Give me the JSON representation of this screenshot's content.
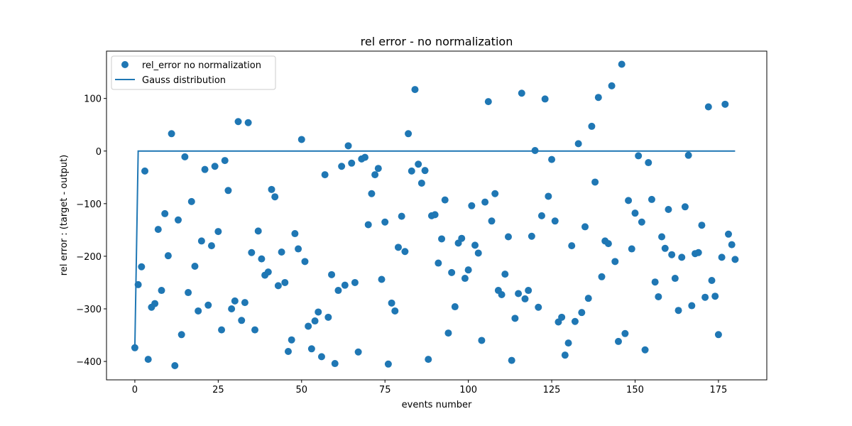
{
  "chart_data": {
    "type": "scatter",
    "title": "rel error - no normalization",
    "xlabel": "events number",
    "ylabel": "rel error : (target - output)",
    "xlim": [
      -8.5,
      189.5
    ],
    "ylim": [
      -435,
      190
    ],
    "xticks": [
      0,
      25,
      50,
      75,
      100,
      125,
      150,
      175
    ],
    "yticks": [
      -400,
      -300,
      -200,
      -100,
      0,
      100
    ],
    "grid": false,
    "legend_position": "upper-left",
    "colors": {
      "series": "#1f77b4"
    },
    "series": [
      {
        "name": "rel_error no normalization",
        "kind": "scatter",
        "x": [
          0,
          1,
          2,
          3,
          4,
          5,
          6,
          7,
          8,
          9,
          10,
          11,
          12,
          13,
          14,
          15,
          16,
          17,
          18,
          19,
          20,
          21,
          22,
          23,
          24,
          25,
          26,
          27,
          28,
          29,
          30,
          31,
          32,
          33,
          34,
          35,
          36,
          37,
          38,
          39,
          40,
          41,
          42,
          43,
          44,
          45,
          46,
          47,
          48,
          49,
          50,
          51,
          52,
          53,
          54,
          55,
          56,
          57,
          58,
          59,
          60,
          61,
          62,
          63,
          64,
          65,
          66,
          67,
          68,
          69,
          70,
          71,
          72,
          73,
          74,
          75,
          76,
          77,
          78,
          79,
          80,
          81,
          82,
          83,
          84,
          85,
          86,
          87,
          88,
          89,
          90,
          91,
          92,
          93,
          94,
          95,
          96,
          97,
          98,
          99,
          100,
          101,
          102,
          103,
          104,
          105,
          106,
          107,
          108,
          109,
          110,
          111,
          112,
          113,
          114,
          115,
          116,
          117,
          118,
          119,
          120,
          121,
          122,
          123,
          124,
          125,
          126,
          127,
          128,
          129,
          130,
          131,
          132,
          133,
          134,
          135,
          136,
          137,
          138,
          139,
          140,
          141,
          142,
          143,
          144,
          145,
          146,
          147,
          148,
          149,
          150,
          151,
          152,
          153,
          154,
          155,
          156,
          157,
          158,
          159,
          160,
          161,
          162,
          163,
          164,
          165,
          166,
          167,
          168,
          169,
          170,
          171,
          172,
          173,
          174,
          175,
          176,
          177,
          178,
          179,
          180
        ],
        "y": [
          -374,
          -254,
          -220,
          -38,
          -396,
          -297,
          -290,
          -149,
          -265,
          -119,
          -199,
          33,
          -408,
          -131,
          -349,
          -11,
          -269,
          -96,
          -219,
          -304,
          -171,
          -35,
          -293,
          -180,
          -29,
          -153,
          -340,
          -18,
          -75,
          -300,
          -285,
          56,
          -322,
          -288,
          54,
          -193,
          -340,
          -152,
          -205,
          -236,
          -230,
          -73,
          -87,
          -256,
          -192,
          -250,
          -381,
          -359,
          -157,
          -186,
          22,
          -210,
          -333,
          -376,
          -323,
          -306,
          -391,
          -45,
          -316,
          -235,
          -404,
          -265,
          -29,
          -255,
          10,
          -23,
          -250,
          -382,
          -15,
          -12,
          -140,
          -81,
          -45,
          -33,
          -244,
          -135,
          -405,
          -289,
          -304,
          -183,
          -124,
          -191,
          33,
          -38,
          117,
          -25,
          -61,
          -37,
          -396,
          -123,
          -121,
          -213,
          -167,
          -93,
          -346,
          -231,
          -296,
          -175,
          -166,
          -242,
          -226,
          -104,
          -179,
          -194,
          -360,
          -97,
          94,
          -133,
          -81,
          -265,
          -273,
          -234,
          -163,
          -398,
          -318,
          -271,
          110,
          -281,
          -265,
          -162,
          1,
          -297,
          -123,
          99,
          -86,
          -16,
          -133,
          -325,
          -316,
          -388,
          -365,
          -180,
          -324,
          14,
          -307,
          -144,
          -280,
          47,
          -59,
          102,
          -239,
          -171,
          -176,
          124,
          -210,
          -362,
          165,
          -347,
          -94,
          -186,
          -118,
          -9,
          -135,
          -378,
          -22,
          -92,
          -249,
          -277,
          -163,
          -185,
          -111,
          -197,
          -242,
          -303,
          -202,
          -106,
          -8,
          -294,
          -195,
          -193,
          -141,
          -278,
          84,
          -246,
          -276,
          -349,
          -202,
          89,
          -158,
          -178,
          -206
        ]
      },
      {
        "name": "Gauss distribution",
        "kind": "line",
        "x": [
          0,
          1,
          180
        ],
        "y": [
          -374,
          0,
          0
        ]
      }
    ]
  }
}
